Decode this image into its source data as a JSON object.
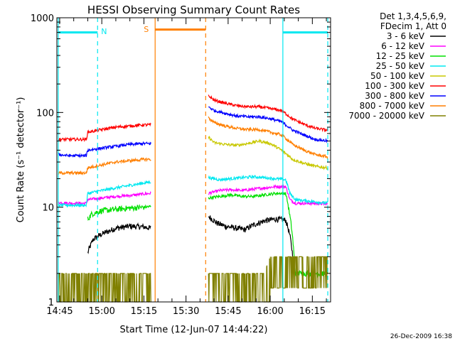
{
  "chart_data": {
    "type": "line",
    "title": "HESSI Observing Summary Count Rates",
    "xlabel": "Start Time (12-Jun-07 14:44:22)",
    "ylabel": "Count Rate (s⁻¹ detector⁻¹)",
    "yscale": "log",
    "ylim": [
      1,
      1000
    ],
    "xlim_minutes": [
      44.0,
      141.5
    ],
    "x_ticks": [
      "14:45",
      "15:00",
      "15:15",
      "15:30",
      "15:45",
      "16:00",
      "16:15"
    ],
    "y_ticks": [
      "1",
      "10",
      "100",
      "1000"
    ],
    "legend_header": [
      "Det 1,3,4,5,6,9,",
      "FDecim 1, Att 0"
    ],
    "legend_placement": "right",
    "footer": "26-Dec-2009 16:38",
    "grid": false,
    "markers": [
      {
        "label": "N",
        "color": "#00e8f0"
      },
      {
        "label": "S",
        "color": "#ff7f00"
      }
    ],
    "bands": [
      {
        "name": "night",
        "color": "#00e8f0",
        "x": [
          44.5,
          58.5
        ],
        "y": 700,
        "start_edge": "solid",
        "end_edge": "dashed"
      },
      {
        "name": "saa",
        "color": "#ff7f00",
        "x": [
          79.0,
          97.0
        ],
        "y": 750,
        "start_edge": "solid",
        "end_edge": "dashed"
      },
      {
        "name": "night2",
        "color": "#00e8f0",
        "x": [
          124.5,
          140.5
        ],
        "y": 700,
        "start_edge": "solid",
        "end_edge": "dashed"
      }
    ],
    "series": [
      {
        "name": "3 - 6 keV",
        "color": "#000000",
        "segments": [
          [
            [
              55,
              3.3
            ],
            [
              57,
              4.6
            ],
            [
              60,
              5.2
            ],
            [
              65,
              6.0
            ],
            [
              70,
              6.3
            ],
            [
              75,
              6.2
            ],
            [
              77.5,
              6.0
            ]
          ],
          [
            [
              98,
              8.0
            ],
            [
              101,
              6.8
            ],
            [
              104,
              6.3
            ],
            [
              108,
              6.0
            ],
            [
              111,
              5.8
            ],
            [
              114,
              6.5
            ],
            [
              118,
              7.2
            ],
            [
              122,
              7.5
            ],
            [
              125.5,
              7.3
            ],
            [
              127,
              5.0
            ],
            [
              128.5,
              2.1
            ]
          ]
        ]
      },
      {
        "name": "6 - 12 keV",
        "color": "#ff00ff",
        "segments": [
          [
            [
              44.5,
              11.2
            ],
            [
              50,
              11.0
            ],
            [
              54.5,
              11.0
            ],
            [
              55,
              12.0
            ],
            [
              60,
              12.5
            ],
            [
              65,
              13.0
            ],
            [
              70,
              13.3
            ],
            [
              75,
              13.8
            ],
            [
              77.5,
              14.0
            ]
          ],
          [
            [
              98,
              14.0
            ],
            [
              102,
              15.0
            ],
            [
              106,
              15.3
            ],
            [
              110,
              15.0
            ],
            [
              114,
              15.5
            ],
            [
              118,
              16.0
            ],
            [
              122,
              16.5
            ],
            [
              125.5,
              16.5
            ],
            [
              127,
              12.0
            ],
            [
              129,
              11.0
            ],
            [
              135,
              11.0
            ],
            [
              140.5,
              10.8
            ]
          ]
        ]
      },
      {
        "name": "12 - 25 keV",
        "color": "#00e000",
        "segments": [
          [
            [
              55,
              7.5
            ],
            [
              56.5,
              8.5
            ],
            [
              60,
              9.2
            ],
            [
              65,
              9.5
            ],
            [
              70,
              9.8
            ],
            [
              75,
              10.0
            ],
            [
              77.5,
              10.2
            ]
          ],
          [
            [
              98,
              12.5
            ],
            [
              102,
              13.0
            ],
            [
              106,
              13.5
            ],
            [
              110,
              13.0
            ],
            [
              114,
              13.0
            ],
            [
              118,
              13.5
            ],
            [
              122,
              14.0
            ],
            [
              125.5,
              14.0
            ],
            [
              127,
              8.0
            ],
            [
              128.5,
              3.0
            ],
            [
              129,
              2.0
            ],
            [
              140.5,
              2.0
            ]
          ]
        ]
      },
      {
        "name": "25 - 50 keV",
        "color": "#00e8f0",
        "segments": [
          [
            [
              44.5,
              10.5
            ],
            [
              50,
              10.5
            ],
            [
              54.5,
              10.5
            ],
            [
              55,
              14.0
            ],
            [
              60,
              15.0
            ],
            [
              65,
              16.0
            ],
            [
              70,
              17.0
            ],
            [
              75,
              18.0
            ],
            [
              77.5,
              18.5
            ]
          ],
          [
            [
              98,
              20.5
            ],
            [
              102,
              19.5
            ],
            [
              106,
              20.0
            ],
            [
              110,
              20.5
            ],
            [
              114,
              21.0
            ],
            [
              118,
              20.5
            ],
            [
              122,
              20.0
            ],
            [
              125.5,
              19.5
            ],
            [
              127,
              14.0
            ],
            [
              129,
              12.0
            ],
            [
              135,
              11.5
            ],
            [
              140.5,
              11.0
            ]
          ]
        ]
      },
      {
        "name": "50 - 100 keV",
        "color": "#c8c800",
        "segments": [
          [
            [
              98,
              55.0
            ],
            [
              100,
              48.0
            ],
            [
              104,
              46.0
            ],
            [
              108,
              45.0
            ],
            [
              112,
              47.0
            ],
            [
              116,
              50.0
            ],
            [
              120,
              47.0
            ],
            [
              124,
              40.0
            ],
            [
              128,
              32.0
            ],
            [
              132,
              29.0
            ],
            [
              136,
              27.0
            ],
            [
              140.5,
              26.0
            ]
          ]
        ]
      },
      {
        "name": "100 - 300 keV",
        "color": "#ff0000",
        "segments": [
          [
            [
              44.5,
              52.0
            ],
            [
              48,
              52.0
            ],
            [
              54.5,
              52.0
            ],
            [
              55,
              62.0
            ],
            [
              60,
              66.0
            ],
            [
              65,
              70.0
            ],
            [
              70,
              72.0
            ],
            [
              75,
              74.0
            ],
            [
              77.5,
              74.0
            ]
          ],
          [
            [
              98,
              150.0
            ],
            [
              100,
              135.0
            ],
            [
              104,
              125.0
            ],
            [
              108,
              118.0
            ],
            [
              112,
              115.0
            ],
            [
              116,
              115.0
            ],
            [
              120,
              110.0
            ],
            [
              124,
              105.0
            ],
            [
              128,
              85.0
            ],
            [
              132,
              75.0
            ],
            [
              136,
              68.0
            ],
            [
              140.5,
              65.0
            ]
          ]
        ]
      },
      {
        "name": "300 - 800 keV",
        "color": "#0000ff",
        "segments": [
          [
            [
              44.5,
              36.0
            ],
            [
              48,
              35.0
            ],
            [
              54.5,
              35.0
            ],
            [
              55,
              40.0
            ],
            [
              60,
              42.0
            ],
            [
              65,
              44.0
            ],
            [
              70,
              46.0
            ],
            [
              75,
              47.0
            ],
            [
              77.5,
              47.0
            ]
          ],
          [
            [
              98,
              115.0
            ],
            [
              100,
              105.0
            ],
            [
              104,
              98.0
            ],
            [
              108,
              92.0
            ],
            [
              112,
              90.0
            ],
            [
              116,
              90.0
            ],
            [
              120,
              86.0
            ],
            [
              124,
              80.0
            ],
            [
              128,
              65.0
            ],
            [
              132,
              58.0
            ],
            [
              136,
              52.0
            ],
            [
              140.5,
              50.0
            ]
          ]
        ]
      },
      {
        "name": "800 - 7000 keV",
        "color": "#ff7f00",
        "segments": [
          [
            [
              44.5,
              23.0
            ],
            [
              48,
              23.0
            ],
            [
              54.5,
              23.0
            ],
            [
              55,
              26.0
            ],
            [
              60,
              28.0
            ],
            [
              65,
              30.0
            ],
            [
              70,
              31.0
            ],
            [
              75,
              32.0
            ],
            [
              77.5,
              32.0
            ]
          ],
          [
            [
              98,
              88.0
            ],
            [
              100,
              78.0
            ],
            [
              104,
              72.0
            ],
            [
              108,
              68.0
            ],
            [
              112,
              66.0
            ],
            [
              116,
              66.0
            ],
            [
              120,
              62.0
            ],
            [
              124,
              58.0
            ],
            [
              128,
              46.0
            ],
            [
              132,
              40.0
            ],
            [
              136,
              36.0
            ],
            [
              140.5,
              34.0
            ]
          ]
        ]
      },
      {
        "name": "7000 - 20000 keV",
        "color": "#808000",
        "segments": [
          [
            [
              44.5,
              2.0
            ],
            [
              50,
              2.0
            ],
            [
              55,
              2.0
            ],
            [
              60,
              2.0
            ],
            [
              65,
              2.0
            ],
            [
              70,
              2.0
            ],
            [
              75,
              2.0
            ],
            [
              77.5,
              2.0
            ]
          ],
          [
            [
              98,
              2.0
            ],
            [
              105,
              2.0
            ],
            [
              112,
              2.0
            ],
            [
              118,
              2.0
            ],
            [
              120,
              3.0
            ],
            [
              125,
              3.0
            ],
            [
              130,
              3.0
            ],
            [
              135,
              3.0
            ],
            [
              140.5,
              3.0
            ]
          ]
        ]
      }
    ]
  }
}
